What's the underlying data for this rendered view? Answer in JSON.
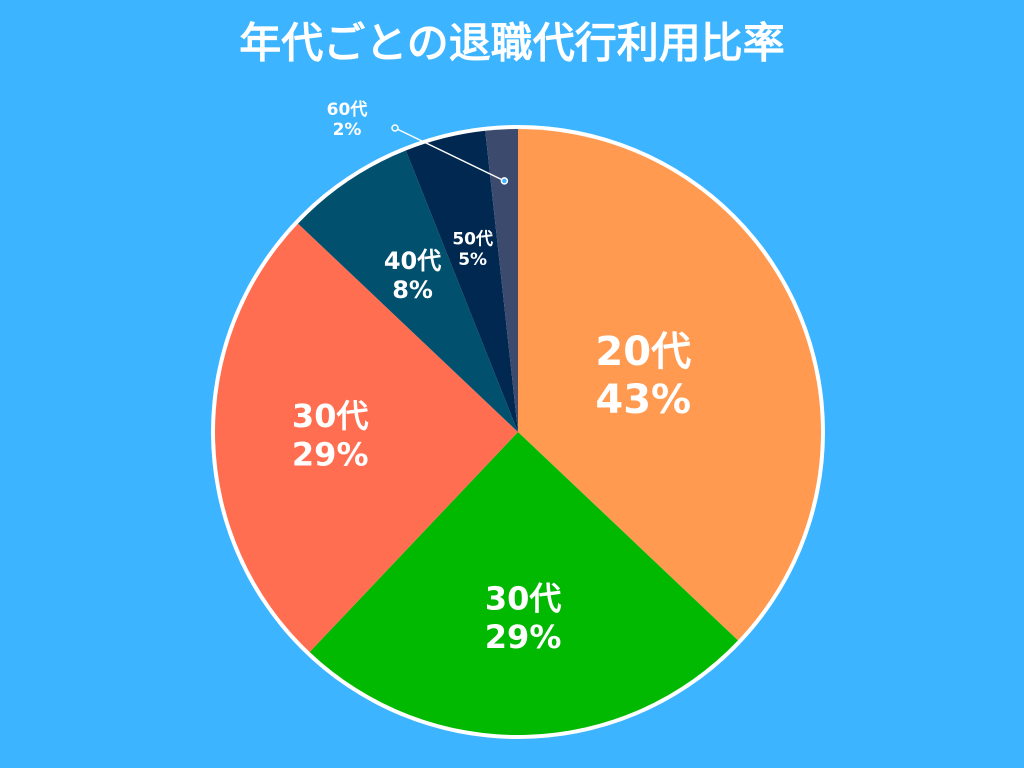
{
  "chart_data": {
    "type": "pie",
    "title": "年代ごとの退職代行利用比率",
    "categories": [
      "20代",
      "30代",
      "30代",
      "40代",
      "50代",
      "60代"
    ],
    "values": [
      43,
      29,
      29,
      8,
      5,
      2
    ],
    "value_labels": [
      "43%",
      "29%",
      "29%",
      "8%",
      "5%",
      "2%"
    ],
    "colors": [
      "#ff9a50",
      "#00b900",
      "#ff6e50",
      "#00506e",
      "#002850",
      "#3c4a6e"
    ]
  }
}
